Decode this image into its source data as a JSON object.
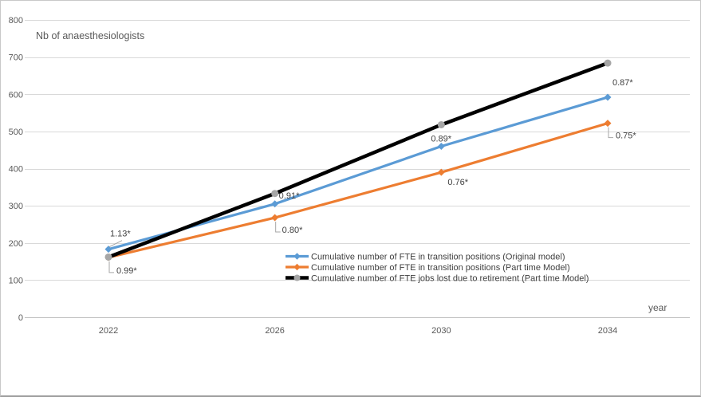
{
  "chart_data": {
    "type": "line",
    "title": "Nb of anaesthesiologists",
    "xlabel": "year",
    "ylabel": "Nb of anaesthesiologists",
    "x_categories": [
      "2022",
      "2026",
      "2030",
      "2034"
    ],
    "ylim": [
      0,
      800
    ],
    "ytick_step": 100,
    "yticks": [
      0,
      100,
      200,
      300,
      400,
      500,
      600,
      700,
      800
    ],
    "grid": true,
    "legend_position": "inside-bottom-center",
    "style": {
      "background": "#FFFFFF",
      "grid_color": "#D9D9D9",
      "axis_color": "#BFBFBF",
      "tick_label_color": "#595959",
      "axis_title_color": "#595959",
      "data_label_color": "#404040",
      "leader_color": "#A6A6A6"
    },
    "series": [
      {
        "id": "fte-transition-original-model",
        "name": "Cumulative number of FTE in transition positions (Original model)",
        "color": "#5B9BD5",
        "marker": "diamond",
        "line_width": 3.2,
        "values": [
          183,
          305,
          460,
          592
        ],
        "point_labels": [
          "1.13*",
          "0.91*",
          "0.89*",
          "0.87*"
        ]
      },
      {
        "id": "fte-transition-part-time-model",
        "name": "Cumulative number of FTE in transition positions (Part time Model)",
        "color": "#ED7D31",
        "marker": "diamond",
        "line_width": 3.2,
        "values": [
          161,
          268,
          390,
          522
        ],
        "point_labels": [
          "0.99*",
          "0.80*",
          "0.76*",
          "0.75*"
        ]
      },
      {
        "id": "fte-jobs-lost-retirement-part-time-model",
        "name": "Cumulative number of FTE jobs lost due to retirement (Part time Model)",
        "color": "#000000",
        "marker": "circle",
        "marker_color": "#A6A6A6",
        "line_width": 4.5,
        "values": [
          162,
          333,
          518,
          684
        ],
        "point_labels": [
          null,
          null,
          null,
          null
        ]
      }
    ]
  }
}
